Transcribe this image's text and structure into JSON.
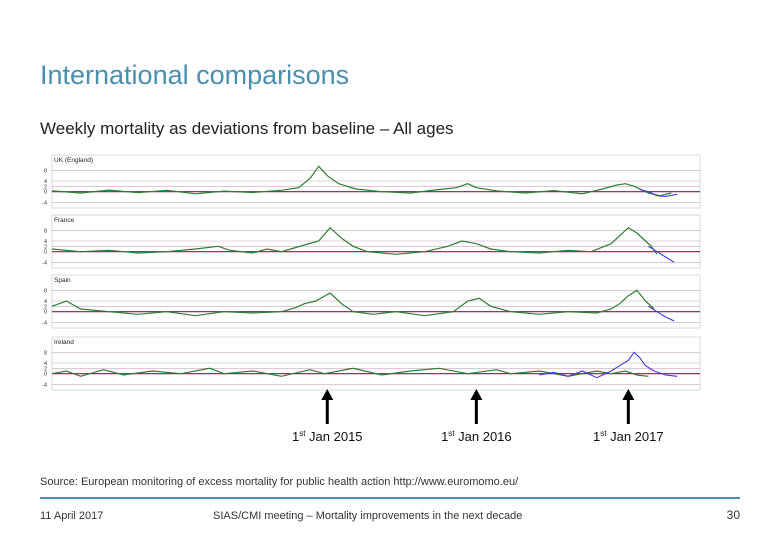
{
  "slide": {
    "title": "International comparisons",
    "subtitle": "Weekly mortality as deviations from baseline – All ages",
    "source": "Source: European monitoring of excess mortality for public health action http://www.euromomo.eu/",
    "footer_date": "11 April 2017",
    "footer_meeting": "SIAS/CMI meeting – Mortality improvements in the next decade",
    "page_number": "30"
  },
  "colors": {
    "series": "#2e7d32",
    "recent": "#3b3bd6",
    "baseline": "#8b1a4a",
    "bands": "#c8a8bf",
    "arrow": "#000000"
  },
  "markers": [
    {
      "label_prefix": "1",
      "label_sup": "st",
      "label_rest": " Jan 2015",
      "week": 96
    },
    {
      "label_prefix": "1",
      "label_sup": "st",
      "label_rest": " Jan 2016",
      "week": 148
    },
    {
      "label_prefix": "1",
      "label_sup": "st",
      "label_rest": " Jan 2017",
      "week": 201
    }
  ],
  "chart_data": {
    "type": "line",
    "x_unit": "week index",
    "x_range": [
      0,
      226
    ],
    "panels": [
      {
        "name": "UK (England)",
        "yticks": [
          "8",
          "4",
          "2",
          "0",
          "-4"
        ],
        "ylim": [
          -5,
          10
        ],
        "series_points": [
          [
            0,
            0.3
          ],
          [
            10,
            -0.5
          ],
          [
            20,
            0.6
          ],
          [
            30,
            -0.4
          ],
          [
            40,
            0.5
          ],
          [
            50,
            -0.8
          ],
          [
            60,
            0.2
          ],
          [
            70,
            -0.3
          ],
          [
            80,
            0.5
          ],
          [
            86,
            1.5
          ],
          [
            90,
            5
          ],
          [
            93,
            9.5
          ],
          [
            96,
            6
          ],
          [
            100,
            3
          ],
          [
            106,
            1
          ],
          [
            115,
            0
          ],
          [
            125,
            -0.5
          ],
          [
            135,
            0.8
          ],
          [
            141,
            1.5
          ],
          [
            145,
            3
          ],
          [
            148,
            1.5
          ],
          [
            155,
            0.3
          ],
          [
            165,
            -0.5
          ],
          [
            175,
            0.4
          ],
          [
            185,
            -0.8
          ],
          [
            192,
            1
          ],
          [
            197,
            2.5
          ],
          [
            200,
            3
          ],
          [
            203,
            2
          ],
          [
            206,
            0.5
          ],
          [
            208,
            -0.5
          ],
          [
            212,
            -1.5
          ],
          [
            216,
            -0.5
          ]
        ],
        "recent_points": [
          [
            205,
            0.8
          ],
          [
            208,
            0
          ],
          [
            211,
            -1.5
          ],
          [
            214,
            -1.8
          ],
          [
            218,
            -1
          ]
        ]
      },
      {
        "name": "France",
        "yticks": [
          "8",
          "4",
          "2",
          "0",
          "-4"
        ],
        "ylim": [
          -5,
          10
        ],
        "series_points": [
          [
            0,
            1
          ],
          [
            10,
            0
          ],
          [
            20,
            0.5
          ],
          [
            30,
            -0.5
          ],
          [
            40,
            0
          ],
          [
            50,
            1
          ],
          [
            58,
            2
          ],
          [
            62,
            0.5
          ],
          [
            70,
            -0.5
          ],
          [
            75,
            1
          ],
          [
            80,
            0
          ],
          [
            88,
            2.5
          ],
          [
            93,
            4
          ],
          [
            97,
            9
          ],
          [
            101,
            5
          ],
          [
            105,
            2
          ],
          [
            110,
            0
          ],
          [
            120,
            -1
          ],
          [
            130,
            0
          ],
          [
            138,
            2
          ],
          [
            143,
            4
          ],
          [
            148,
            3
          ],
          [
            153,
            1
          ],
          [
            160,
            0
          ],
          [
            170,
            -0.5
          ],
          [
            180,
            0.5
          ],
          [
            188,
            0
          ],
          [
            195,
            3
          ],
          [
            198,
            6
          ],
          [
            201,
            9
          ],
          [
            204,
            7
          ],
          [
            207,
            4
          ],
          [
            209,
            2
          ],
          [
            211,
            -1
          ]
        ],
        "recent_points": [
          [
            208,
            2
          ],
          [
            211,
            0
          ],
          [
            214,
            -2
          ],
          [
            217,
            -4
          ]
        ]
      },
      {
        "name": "Spain",
        "yticks": [
          "8",
          "4",
          "2",
          "0",
          "-4"
        ],
        "ylim": [
          -5,
          10
        ],
        "series_points": [
          [
            0,
            2
          ],
          [
            5,
            4
          ],
          [
            10,
            1
          ],
          [
            20,
            0
          ],
          [
            30,
            -1
          ],
          [
            40,
            0
          ],
          [
            50,
            -1.5
          ],
          [
            60,
            0
          ],
          [
            70,
            -0.5
          ],
          [
            80,
            0
          ],
          [
            85,
            1.5
          ],
          [
            88,
            3
          ],
          [
            92,
            4
          ],
          [
            97,
            7
          ],
          [
            101,
            3
          ],
          [
            105,
            0
          ],
          [
            112,
            -1
          ],
          [
            120,
            0
          ],
          [
            130,
            -1.5
          ],
          [
            140,
            0
          ],
          [
            145,
            4
          ],
          [
            149,
            5
          ],
          [
            153,
            2
          ],
          [
            160,
            0
          ],
          [
            170,
            -1
          ],
          [
            180,
            0
          ],
          [
            190,
            -0.5
          ],
          [
            195,
            1
          ],
          [
            198,
            3
          ],
          [
            201,
            6
          ],
          [
            204,
            8
          ],
          [
            207,
            4
          ],
          [
            210,
            1
          ]
        ],
        "recent_points": [
          [
            208,
            2
          ],
          [
            211,
            0
          ],
          [
            214,
            -2
          ],
          [
            217,
            -3.5
          ]
        ]
      },
      {
        "name": "Ireland",
        "yticks": [
          "8",
          "4",
          "2",
          "0",
          "-4"
        ],
        "ylim": [
          -5,
          10
        ],
        "series_points": [
          [
            0,
            0
          ],
          [
            5,
            1
          ],
          [
            10,
            -1
          ],
          [
            18,
            1.5
          ],
          [
            25,
            -0.5
          ],
          [
            35,
            1
          ],
          [
            45,
            0
          ],
          [
            55,
            2
          ],
          [
            60,
            0
          ],
          [
            70,
            1
          ],
          [
            80,
            -1
          ],
          [
            90,
            1.5
          ],
          [
            95,
            0
          ],
          [
            105,
            2
          ],
          [
            115,
            -0.5
          ],
          [
            125,
            1
          ],
          [
            135,
            2
          ],
          [
            145,
            0
          ],
          [
            155,
            1.5
          ],
          [
            160,
            0
          ],
          [
            170,
            1
          ],
          [
            180,
            -1
          ],
          [
            190,
            1
          ],
          [
            195,
            0
          ],
          [
            200,
            1
          ],
          [
            204,
            -0.5
          ],
          [
            208,
            -1
          ]
        ],
        "recent_points": [
          [
            170,
            -0.5
          ],
          [
            175,
            0.5
          ],
          [
            180,
            -1
          ],
          [
            185,
            1
          ],
          [
            190,
            -1.5
          ],
          [
            195,
            1
          ],
          [
            198,
            3
          ],
          [
            201,
            5
          ],
          [
            203,
            8
          ],
          [
            205,
            6
          ],
          [
            207,
            3
          ],
          [
            210,
            1
          ],
          [
            214,
            -0.5
          ],
          [
            218,
            -1
          ]
        ]
      }
    ]
  }
}
